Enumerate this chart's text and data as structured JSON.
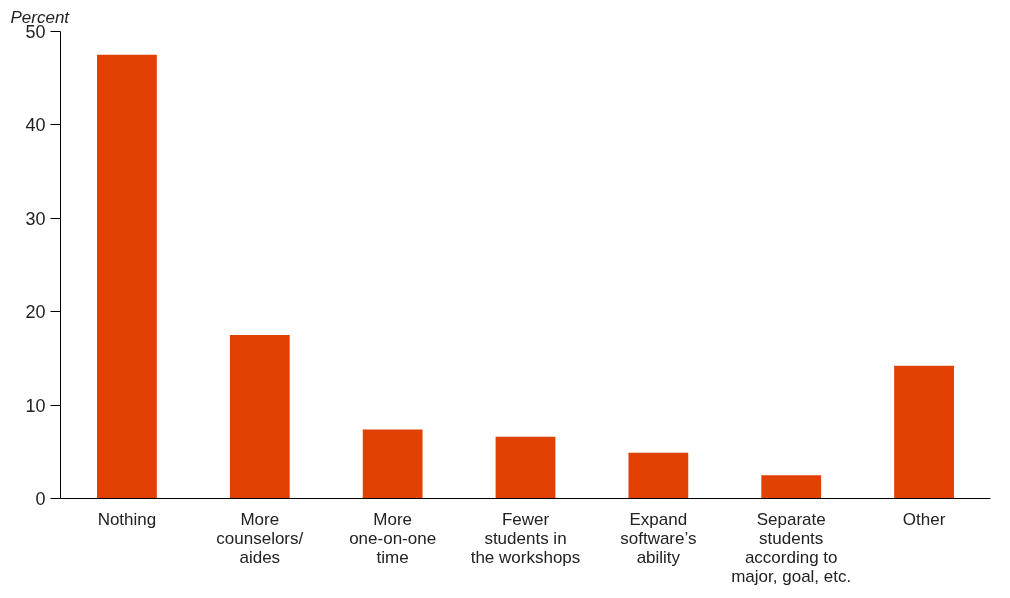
{
  "chart_data": {
    "type": "bar",
    "ylabel": "Percent",
    "categories": [
      "Nothing",
      "More\ncounselors/\naides",
      "More\none-on-one\ntime",
      "Fewer\nstudents in\nthe workshops",
      "Expand\nsoftware’s\nability",
      "Separate\nstudents\naccording to\nmajor, goal, etc.",
      "Other"
    ],
    "values": [
      47.5,
      17.5,
      7.4,
      6.6,
      4.9,
      2.5,
      14.2
    ],
    "color": "#e04000",
    "ylim": [
      0,
      50
    ],
    "yticks": [
      0,
      10,
      20,
      30,
      40,
      50
    ],
    "grid": false
  }
}
